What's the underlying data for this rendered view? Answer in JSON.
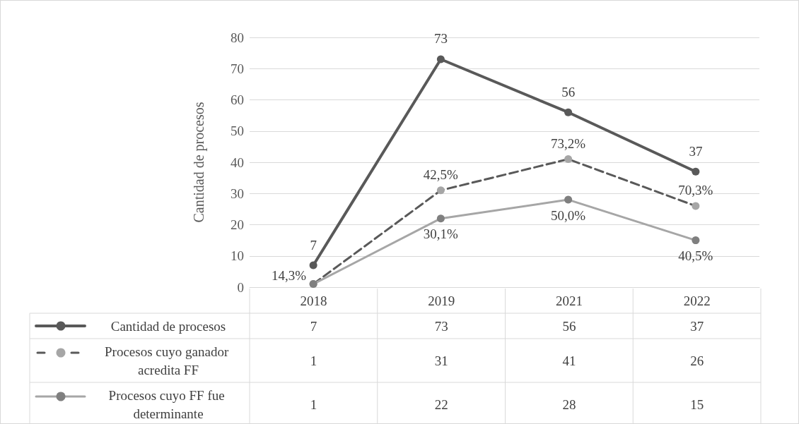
{
  "chart_data": {
    "type": "line",
    "ylabel": "Cantidad de procesos",
    "categories": [
      "2018",
      "2019",
      "2021",
      "2022"
    ],
    "series": [
      {
        "name": "Cantidad de procesos",
        "color": "#595959",
        "line_style": "solid",
        "values": [
          7,
          73,
          56,
          37
        ],
        "value_labels": [
          "7",
          "73",
          "56",
          "37"
        ]
      },
      {
        "name": "Procesos cuyo ganador acredita FF",
        "color": "#a6a6a6",
        "line_style": "dashed",
        "values": [
          1,
          31,
          41,
          26
        ]
      },
      {
        "name": "Procesos cuyo FF fue determinante",
        "color": "#7f7f7f",
        "line_style": "solid",
        "values": [
          1,
          22,
          28,
          15
        ]
      }
    ],
    "annotations": [
      {
        "text": "14,3%",
        "x": "2018",
        "y": 1
      },
      {
        "text": "42,5%",
        "x": "2019",
        "y": 31
      },
      {
        "text": "73,2%",
        "x": "2021",
        "y": 41
      },
      {
        "text": "70,3%",
        "x": "2022",
        "y": 26
      },
      {
        "text": "30,1%",
        "x": "2019",
        "y": 22
      },
      {
        "text": "50,0%",
        "x": "2021",
        "y": 28
      },
      {
        "text": "40,5%",
        "x": "2022",
        "y": 15
      }
    ],
    "ylim": [
      0,
      80
    ],
    "yticks": [
      0,
      10,
      20,
      30,
      40,
      50,
      60,
      70,
      80
    ],
    "grid": "y",
    "marker": "circle",
    "legend": "bottom left",
    "data_labels": true
  }
}
